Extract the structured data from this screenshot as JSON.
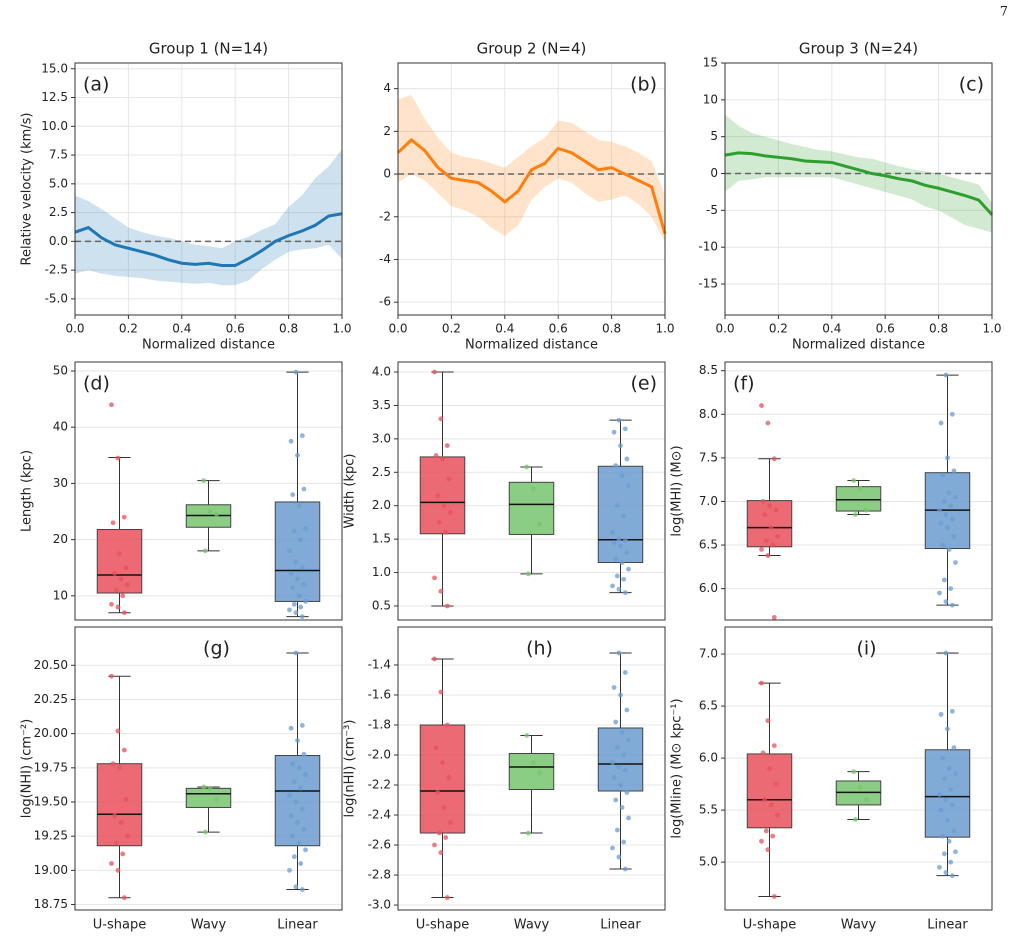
{
  "page_number": "7",
  "chart_data": [
    {
      "type": "line",
      "title": "Group 1 (N=14)",
      "annotation": "(a)",
      "xlabel": "Normalized distance",
      "ylabel": "Relative velocity (km/s)",
      "x": [
        0,
        0.05,
        0.1,
        0.15,
        0.2,
        0.25,
        0.3,
        0.35,
        0.4,
        0.45,
        0.5,
        0.55,
        0.6,
        0.65,
        0.7,
        0.75,
        0.8,
        0.85,
        0.9,
        0.95,
        1.0
      ],
      "series": [
        {
          "color": "#1f77b4",
          "values": [
            0.8,
            1.2,
            0.3,
            -0.3,
            -0.6,
            -0.9,
            -1.2,
            -1.6,
            -1.9,
            -2.0,
            -1.9,
            -2.1,
            -2.1,
            -1.5,
            -0.8,
            0.0,
            0.5,
            0.9,
            1.4,
            2.2,
            2.4
          ]
        }
      ],
      "band": {
        "color": "#1f77b4",
        "lower": [
          -2.8,
          -2.5,
          -2.8,
          -3.0,
          -3.1,
          -3.2,
          -3.4,
          -3.5,
          -3.6,
          -3.7,
          -3.6,
          -3.8,
          -3.8,
          -3.4,
          -2.4,
          -1.6,
          -0.9,
          -0.7,
          -0.6,
          -0.3,
          -1.5
        ],
        "upper": [
          4.0,
          3.5,
          2.8,
          2.0,
          1.2,
          0.8,
          0.5,
          0.3,
          0.0,
          -0.3,
          -0.4,
          -0.6,
          0.0,
          0.4,
          1.0,
          1.5,
          3.0,
          4.0,
          5.5,
          6.5,
          8.0
        ]
      },
      "hline": 0,
      "xlim": [
        0,
        1
      ],
      "xticks": [
        {
          "value": 0,
          "label": "0.0"
        },
        0.2,
        0.4,
        0.6,
        0.8,
        {
          "value": 1,
          "label": "1.0"
        }
      ],
      "ylim": [
        -6.4,
        15.5
      ],
      "yticks": [
        {
          "value": -5,
          "label": "-5.0"
        },
        -2.5,
        {
          "value": 0,
          "label": "0.0"
        },
        2.5,
        {
          "value": 5,
          "label": "5.0"
        },
        7.5,
        {
          "value": 10,
          "label": "10.0"
        },
        12.5,
        {
          "value": 15,
          "label": "15.0"
        }
      ],
      "grid": true
    },
    {
      "type": "line",
      "title": "Group 2 (N=4)",
      "annotation": "(b)",
      "xlabel": "Normalized distance",
      "x": [
        0,
        0.05,
        0.1,
        0.15,
        0.2,
        0.25,
        0.3,
        0.35,
        0.4,
        0.45,
        0.5,
        0.55,
        0.6,
        0.65,
        0.7,
        0.75,
        0.8,
        0.85,
        0.9,
        0.95,
        1.0
      ],
      "series": [
        {
          "color": "#ff7f0e",
          "values": [
            1.0,
            1.6,
            1.1,
            0.3,
            -0.2,
            -0.3,
            -0.4,
            -0.8,
            -1.3,
            -0.8,
            0.2,
            0.5,
            1.2,
            1.0,
            0.6,
            0.2,
            0.3,
            0.0,
            -0.3,
            -0.6,
            -2.8
          ]
        }
      ],
      "band": {
        "color": "#ff7f0e",
        "lower": [
          -0.4,
          0.0,
          -0.3,
          -0.9,
          -1.5,
          -1.7,
          -2.0,
          -2.5,
          -2.9,
          -2.4,
          -1.2,
          -0.6,
          -0.2,
          -0.4,
          -0.9,
          -1.3,
          -1.2,
          -1.0,
          -1.4,
          -2.0,
          -3.2
        ],
        "upper": [
          3.5,
          3.7,
          2.6,
          1.7,
          1.0,
          0.8,
          0.7,
          0.5,
          0.3,
          0.8,
          1.3,
          1.7,
          2.5,
          2.4,
          2.0,
          1.6,
          1.5,
          1.3,
          1.0,
          0.6,
          -1.0
        ]
      },
      "hline": 0,
      "xlim": [
        0,
        1
      ],
      "xticks": [
        {
          "value": 0,
          "label": "0.0"
        },
        0.2,
        0.4,
        0.6,
        0.8,
        {
          "value": 1,
          "label": "1.0"
        }
      ],
      "ylim": [
        -6.6,
        5.2
      ],
      "yticks": [
        -6,
        -4,
        -2,
        0,
        2,
        4
      ],
      "grid": true
    },
    {
      "type": "line",
      "title": "Group 3 (N=24)",
      "annotation": "(c)",
      "xlabel": "Normalized distance",
      "x": [
        0,
        0.05,
        0.1,
        0.15,
        0.2,
        0.25,
        0.3,
        0.35,
        0.4,
        0.45,
        0.5,
        0.55,
        0.6,
        0.65,
        0.7,
        0.75,
        0.8,
        0.85,
        0.9,
        0.95,
        1.0
      ],
      "series": [
        {
          "color": "#2ca02c",
          "values": [
            2.5,
            2.8,
            2.7,
            2.4,
            2.2,
            2.0,
            1.7,
            1.6,
            1.5,
            1.0,
            0.5,
            0.0,
            -0.3,
            -0.7,
            -1.0,
            -1.6,
            -2.0,
            -2.5,
            -3.0,
            -3.6,
            -5.6
          ]
        }
      ],
      "band": {
        "color": "#2ca02c",
        "lower": [
          -2.5,
          -1.0,
          -0.8,
          -0.5,
          -0.5,
          -0.5,
          -0.5,
          -0.5,
          -0.5,
          -1.0,
          -1.5,
          -2.0,
          -2.5,
          -3.0,
          -3.5,
          -4.5,
          -5.0,
          -6.0,
          -7.0,
          -7.5,
          -8.0
        ],
        "upper": [
          8.0,
          6.5,
          5.5,
          5.0,
          4.5,
          4.0,
          3.6,
          3.2,
          3.0,
          2.6,
          2.2,
          2.0,
          1.5,
          1.0,
          0.6,
          0.3,
          0.0,
          -0.5,
          -1.0,
          -1.5,
          -4.0
        ]
      },
      "hline": 0,
      "xlim": [
        0,
        1
      ],
      "xticks": [
        {
          "value": 0,
          "label": "0.0"
        },
        0.2,
        0.4,
        0.6,
        0.8,
        {
          "value": 1,
          "label": "1.0"
        }
      ],
      "ylim": [
        -19.2,
        15
      ],
      "yticks": [
        -15,
        -10,
        -5,
        0,
        5,
        10,
        15
      ],
      "grid": true
    },
    {
      "type": "box",
      "annotation": "(d)",
      "ylabel": "Length (kpc)",
      "categories": [
        null,
        null,
        null
      ],
      "boxes": [
        {
          "color": "#e8505b",
          "whislo": 7,
          "q1": 10.5,
          "med": 13.7,
          "q3": 21.8,
          "whishi": 34.6,
          "points": [
            44,
            34.5,
            24,
            23,
            17.5,
            15,
            14,
            13,
            12,
            11,
            10,
            8.5,
            8,
            7
          ]
        },
        {
          "color": "#77c46e",
          "whislo": 18,
          "q1": 22.2,
          "med": 24.3,
          "q3": 26.2,
          "whishi": 30.5,
          "points": [
            30.5,
            25,
            24.5,
            18
          ]
        },
        {
          "color": "#6b9bd0",
          "whislo": 6.3,
          "q1": 9,
          "med": 14.5,
          "q3": 26.7,
          "whishi": 49.8,
          "points": [
            49.8,
            38.5,
            37.5,
            35,
            29,
            28,
            26,
            22,
            21.5,
            20,
            18,
            16,
            15,
            14,
            13,
            12,
            11.5,
            10,
            9,
            8.5,
            8,
            7.5,
            7,
            6.3
          ]
        }
      ],
      "ylim": [
        5.7,
        51.6
      ],
      "yticks": [
        10,
        20,
        30,
        40,
        50
      ],
      "grid": true
    },
    {
      "type": "box",
      "annotation": "(e)",
      "ylabel": "Width (kpc)",
      "categories": [
        null,
        null,
        null
      ],
      "boxes": [
        {
          "color": "#e8505b",
          "whislo": 0.5,
          "q1": 1.58,
          "med": 2.05,
          "q3": 2.73,
          "whishi": 4.0,
          "points": [
            4.0,
            3.3,
            2.9,
            2.75,
            2.7,
            2.4,
            2.15,
            2.0,
            1.9,
            1.75,
            1.6,
            0.92,
            0.72,
            0.5
          ]
        },
        {
          "color": "#77c46e",
          "whislo": 0.98,
          "q1": 1.57,
          "med": 2.02,
          "q3": 2.35,
          "whishi": 2.58,
          "points": [
            2.58,
            2.25,
            1.72,
            0.98
          ]
        },
        {
          "color": "#6b9bd0",
          "whislo": 0.7,
          "q1": 1.15,
          "med": 1.49,
          "q3": 2.59,
          "whishi": 3.28,
          "points": [
            3.28,
            3.15,
            3.1,
            2.9,
            2.7,
            2.6,
            2.45,
            2.3,
            2.0,
            1.85,
            1.6,
            1.5,
            1.48,
            1.45,
            1.4,
            1.3,
            1.2,
            1.15,
            1.05,
            0.95,
            0.9,
            0.8,
            0.75,
            0.7
          ]
        }
      ],
      "ylim": [
        0.29,
        4.15
      ],
      "yticks": [
        0.5,
        {
          "value": 1,
          "label": "1.0"
        },
        1.5,
        {
          "value": 2,
          "label": "2.0"
        },
        2.5,
        {
          "value": 3,
          "label": "3.0"
        },
        3.5,
        {
          "value": 4,
          "label": "4.0"
        }
      ],
      "grid": true
    },
    {
      "type": "box",
      "annotation": "(f)",
      "ylabel": "log(MHI) (M⊙)",
      "categories": [
        null,
        null,
        null
      ],
      "boxes": [
        {
          "color": "#e8505b",
          "whislo": 6.38,
          "q1": 6.48,
          "med": 6.7,
          "q3": 7.01,
          "whishi": 7.49,
          "points": [
            8.1,
            7.9,
            7.49,
            7.0,
            6.95,
            6.9,
            6.85,
            6.7,
            6.6,
            6.55,
            6.5,
            6.45,
            6.38,
            5.67
          ]
        },
        {
          "color": "#77c46e",
          "whislo": 6.85,
          "q1": 6.89,
          "med": 7.02,
          "q3": 7.17,
          "whishi": 7.24,
          "points": [
            7.24,
            7.15,
            6.9,
            6.85
          ]
        },
        {
          "color": "#6b9bd0",
          "whislo": 5.81,
          "q1": 6.46,
          "med": 6.9,
          "q3": 7.33,
          "whishi": 8.45,
          "points": [
            8.45,
            8.0,
            7.9,
            7.5,
            7.35,
            7.3,
            7.1,
            7.05,
            7.0,
            6.95,
            6.9,
            6.85,
            6.8,
            6.75,
            6.7,
            6.6,
            6.5,
            6.45,
            6.3,
            6.1,
            6.0,
            5.95,
            5.85,
            5.81
          ]
        }
      ],
      "ylim": [
        5.64,
        8.6
      ],
      "yticks": [
        {
          "value": 6,
          "label": "6.0"
        },
        6.5,
        {
          "value": 7,
          "label": "7.0"
        },
        7.5,
        {
          "value": 8,
          "label": "8.0"
        },
        8.5
      ],
      "grid": true
    },
    {
      "type": "box",
      "annotation": "(g)",
      "ylabel": "log(NHI) (cm⁻²)",
      "categories": [
        "U-shape",
        "Wavy",
        "Linear"
      ],
      "boxes": [
        {
          "color": "#e8505b",
          "whislo": 18.8,
          "q1": 19.18,
          "med": 19.41,
          "q3": 19.78,
          "whishi": 20.42,
          "points": [
            20.42,
            20.02,
            19.88,
            19.78,
            19.75,
            19.52,
            19.4,
            19.35,
            19.25,
            19.2,
            19.12,
            19.05,
            19.0,
            18.8
          ]
        },
        {
          "color": "#77c46e",
          "whislo": 19.28,
          "q1": 19.46,
          "med": 19.56,
          "q3": 19.6,
          "whishi": 19.61,
          "points": [
            19.61,
            19.6,
            19.52,
            19.28
          ]
        },
        {
          "color": "#6b9bd0",
          "whislo": 18.86,
          "q1": 19.18,
          "med": 19.58,
          "q3": 19.84,
          "whishi": 20.59,
          "points": [
            20.59,
            20.06,
            20.04,
            19.95,
            19.85,
            19.78,
            19.75,
            19.7,
            19.65,
            19.6,
            19.55,
            19.5,
            19.45,
            19.4,
            19.35,
            19.3,
            19.25,
            19.2,
            19.15,
            19.1,
            19.05,
            19.0,
            18.88,
            18.86
          ]
        }
      ],
      "ylim": [
        18.71,
        20.78
      ],
      "yticks": [
        18.75,
        {
          "value": 19,
          "label": "19.00"
        },
        19.25,
        {
          "value": 19.5,
          "label": "19.50"
        },
        19.75,
        {
          "value": 20,
          "label": "20.00"
        },
        20.25,
        {
          "value": 20.5,
          "label": "20.50"
        }
      ],
      "grid": true
    },
    {
      "type": "box",
      "annotation": "(h)",
      "ylabel": "log(nHI) (cm⁻³)",
      "categories": [
        "U-shape",
        "Wavy",
        "Linear"
      ],
      "boxes": [
        {
          "color": "#e8505b",
          "whislo": -2.95,
          "q1": -2.52,
          "med": -2.24,
          "q3": -1.8,
          "whishi": -1.36,
          "points": [
            -1.36,
            -1.58,
            -1.8,
            -1.95,
            -2.05,
            -2.15,
            -2.25,
            -2.35,
            -2.45,
            -2.52,
            -2.55,
            -2.6,
            -2.65,
            -2.95
          ]
        },
        {
          "color": "#77c46e",
          "whislo": -2.52,
          "q1": -2.23,
          "med": -2.08,
          "q3": -1.99,
          "whishi": -1.87,
          "points": [
            -1.87,
            -2.05,
            -2.12,
            -2.52
          ]
        },
        {
          "color": "#6b9bd0",
          "whislo": -2.76,
          "q1": -2.24,
          "med": -2.06,
          "q3": -1.82,
          "whishi": -1.32,
          "points": [
            -1.32,
            -1.45,
            -1.55,
            -1.6,
            -1.7,
            -1.78,
            -1.85,
            -1.9,
            -1.95,
            -2.0,
            -2.05,
            -2.08,
            -2.1,
            -2.15,
            -2.2,
            -2.25,
            -2.3,
            -2.35,
            -2.42,
            -2.5,
            -2.58,
            -2.62,
            -2.68,
            -2.76
          ]
        }
      ],
      "ylim": [
        -3.033,
        -1.147
      ],
      "yticks": [
        {
          "value": -3,
          "label": "-3.0"
        },
        -2.8,
        -2.6,
        -2.4,
        -2.2,
        {
          "value": -2,
          "label": "-2.0"
        },
        -1.8,
        -1.6,
        -1.4
      ],
      "grid": true
    },
    {
      "type": "box",
      "annotation": "(i)",
      "ylabel": "log(Mline) (M⊙ kpc⁻¹)",
      "categories": [
        "U-shape",
        "Wavy",
        "Linear"
      ],
      "boxes": [
        {
          "color": "#e8505b",
          "whislo": 4.67,
          "q1": 5.33,
          "med": 5.6,
          "q3": 6.04,
          "whishi": 6.72,
          "points": [
            6.72,
            6.36,
            6.12,
            6.05,
            5.9,
            5.75,
            5.6,
            5.55,
            5.45,
            5.3,
            5.25,
            5.2,
            5.12,
            4.67
          ]
        },
        {
          "color": "#77c46e",
          "whislo": 5.41,
          "q1": 5.55,
          "med": 5.67,
          "q3": 5.78,
          "whishi": 5.87,
          "points": [
            5.87,
            5.72,
            5.6,
            5.41
          ]
        },
        {
          "color": "#6b9bd0",
          "whislo": 4.87,
          "q1": 5.24,
          "med": 5.63,
          "q3": 6.08,
          "whishi": 7.01,
          "points": [
            7.01,
            6.45,
            6.42,
            6.28,
            6.1,
            6.0,
            5.9,
            5.85,
            5.8,
            5.7,
            5.65,
            5.6,
            5.55,
            5.5,
            5.4,
            5.3,
            5.25,
            5.2,
            5.1,
            5.08,
            5.0,
            4.95,
            4.9,
            4.87
          ]
        }
      ],
      "ylim": [
        4.54,
        7.26
      ],
      "yticks": [
        {
          "value": 5,
          "label": "5.0"
        },
        5.5,
        {
          "value": 6,
          "label": "6.0"
        },
        6.5,
        {
          "value": 7,
          "label": "7.0"
        }
      ],
      "grid": true
    }
  ]
}
